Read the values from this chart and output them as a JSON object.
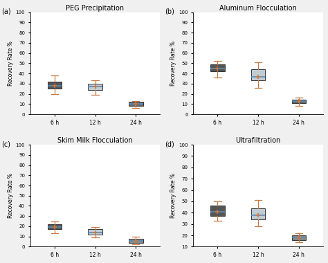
{
  "panels": [
    {
      "label": "(a)",
      "title": "PEG Precipitation",
      "ylabel": "Recovery Rate %",
      "ylim": [
        0,
        100
      ],
      "yticks": [
        0,
        10,
        20,
        30,
        40,
        50,
        60,
        70,
        80,
        90,
        100
      ],
      "xtick_labels": [
        "6 h",
        "12 h",
        "24 h"
      ],
      "boxes": [
        {
          "whislo": 20,
          "q1": 25,
          "med": 28,
          "q3": 32,
          "whishi": 38,
          "mean": 28,
          "color": "#3d3d3d"
        },
        {
          "whislo": 19,
          "q1": 24,
          "med": 27,
          "q3": 30,
          "whishi": 33,
          "mean": 27,
          "color": "#b8c4cc"
        },
        {
          "whislo": 6,
          "q1": 8,
          "med": 10,
          "q3": 12,
          "whishi": 13,
          "mean": 10,
          "color": "#555555"
        }
      ]
    },
    {
      "label": "(b)",
      "title": "Aluminum Flocculation",
      "ylabel": "Recovery Rate %",
      "ylim": [
        0,
        100
      ],
      "yticks": [
        0,
        10,
        20,
        30,
        40,
        50,
        60,
        70,
        80,
        90,
        100
      ],
      "xtick_labels": [
        "6 h",
        "12 h",
        "24 h"
      ],
      "boxes": [
        {
          "whislo": 36,
          "q1": 42,
          "med": 45,
          "q3": 49,
          "whishi": 52,
          "mean": 45,
          "color": "#3d3d3d"
        },
        {
          "whislo": 26,
          "q1": 33,
          "med": 37,
          "q3": 44,
          "whishi": 51,
          "mean": 37,
          "color": "#b8c4cc"
        },
        {
          "whislo": 8,
          "q1": 11,
          "med": 13,
          "q3": 14,
          "whishi": 16,
          "mean": 13,
          "color": "#555555"
        }
      ]
    },
    {
      "label": "(c)",
      "title": "Skim Milk Flocculation",
      "ylabel": "Recovery Rate %",
      "ylim": [
        0,
        100
      ],
      "yticks": [
        0,
        10,
        20,
        30,
        40,
        50,
        60,
        70,
        80,
        90,
        100
      ],
      "xtick_labels": [
        "6 h",
        "12 h",
        "24 h"
      ],
      "boxes": [
        {
          "whislo": 13,
          "q1": 17,
          "med": 19,
          "q3": 22,
          "whishi": 25,
          "mean": 19,
          "color": "#3d3d3d"
        },
        {
          "whislo": 9,
          "q1": 12,
          "med": 14,
          "q3": 17,
          "whishi": 19,
          "mean": 14,
          "color": "#b8c4cc"
        },
        {
          "whislo": 2,
          "q1": 4,
          "med": 6,
          "q3": 8,
          "whishi": 10,
          "mean": 6,
          "color": "#777777"
        }
      ]
    },
    {
      "label": "(d)",
      "title": "Ultrafiltration",
      "ylabel": "Recovery Rate %",
      "ylim": [
        10,
        100
      ],
      "yticks": [
        10,
        20,
        30,
        40,
        50,
        60,
        70,
        80,
        90,
        100
      ],
      "xtick_labels": [
        "6 h",
        "12 h",
        "24 h"
      ],
      "boxes": [
        {
          "whislo": 33,
          "q1": 37,
          "med": 41,
          "q3": 46,
          "whishi": 50,
          "mean": 41,
          "color": "#3d3d3d"
        },
        {
          "whislo": 28,
          "q1": 34,
          "med": 38,
          "q3": 44,
          "whishi": 51,
          "mean": 38,
          "color": "#b8c4cc"
        },
        {
          "whislo": 14,
          "q1": 16,
          "med": 18,
          "q3": 20,
          "whishi": 22,
          "mean": 18,
          "color": "#777777"
        }
      ]
    }
  ],
  "whisker_color": "#c87941",
  "cap_color": "#c87941",
  "median_color": "#5b8db8",
  "mean_color": "#c87941",
  "mean_marker": "+",
  "box_edge_color": "#222222",
  "background_color": "#ffffff",
  "figure_facecolor": "#f0f0f0"
}
